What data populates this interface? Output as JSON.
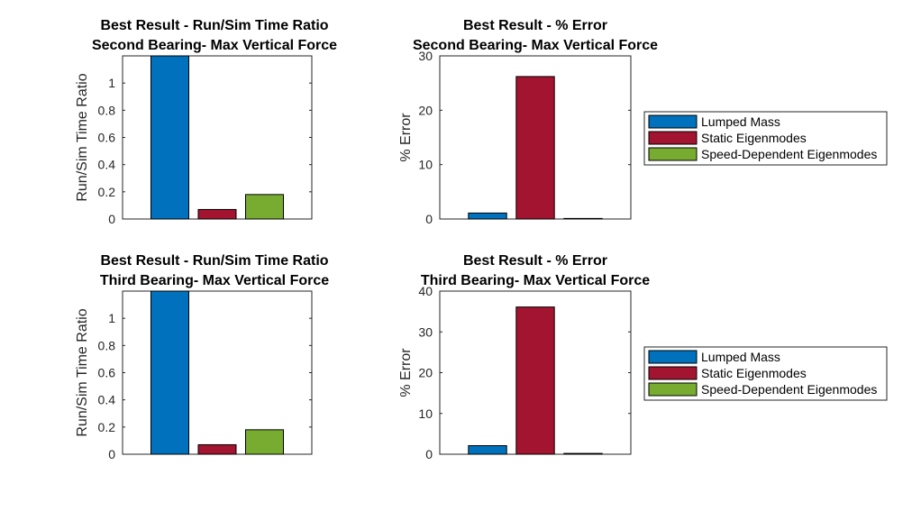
{
  "legend": {
    "entries": [
      "Lumped Mass",
      "Static Eigenmodes",
      "Speed-Dependent Eigenmodes"
    ],
    "colors": [
      "#0072BD",
      "#A2142F",
      "#77AC30"
    ]
  },
  "chart_data": [
    {
      "type": "bar",
      "title": [
        "Best Result - Run/Sim Time Ratio",
        "Second Bearing- Max Vertical Force"
      ],
      "ylabel": "Run/Sim Time Ratio",
      "xlabel": "",
      "categories": [
        "Lumped Mass",
        "Static Eigenmodes",
        "Speed-Dependent Eigenmodes"
      ],
      "values": [
        1.2,
        0.07,
        0.18
      ],
      "ylim": [
        0,
        1.2
      ],
      "yticks": [
        0,
        0.2,
        0.4,
        0.6,
        0.8,
        1
      ],
      "ytick_labels": [
        "0",
        "0.2",
        "0.4",
        "0.6",
        "0.8",
        "1"
      ],
      "legend": false
    },
    {
      "type": "bar",
      "title": [
        "Best Result - % Error",
        "Second Bearing- Max Vertical Force"
      ],
      "ylabel": "% Error",
      "xlabel": "",
      "categories": [
        "Lumped Mass",
        "Static Eigenmodes",
        "Speed-Dependent Eigenmodes"
      ],
      "values": [
        1.1,
        26.2,
        0.1
      ],
      "ylim": [
        0,
        30
      ],
      "yticks": [
        0,
        10,
        20,
        30
      ],
      "ytick_labels": [
        "0",
        "10",
        "20",
        "30"
      ],
      "legend": "right"
    },
    {
      "type": "bar",
      "title": [
        "Best Result - Run/Sim Time Ratio",
        "Third Bearing- Max Vertical Force"
      ],
      "ylabel": "Run/Sim Time Ratio",
      "xlabel": "",
      "categories": [
        "Lumped Mass",
        "Static Eigenmodes",
        "Speed-Dependent Eigenmodes"
      ],
      "values": [
        1.2,
        0.07,
        0.18
      ],
      "ylim": [
        0,
        1.2
      ],
      "yticks": [
        0,
        0.2,
        0.4,
        0.6,
        0.8,
        1
      ],
      "ytick_labels": [
        "0",
        "0.2",
        "0.4",
        "0.6",
        "0.8",
        "1"
      ],
      "legend": false
    },
    {
      "type": "bar",
      "title": [
        "Best Result - % Error",
        "Third Bearing- Max Vertical Force"
      ],
      "ylabel": "% Error",
      "xlabel": "",
      "categories": [
        "Lumped Mass",
        "Static Eigenmodes",
        "Speed-Dependent Eigenmodes"
      ],
      "values": [
        2.1,
        36.1,
        0.2
      ],
      "ylim": [
        0,
        40
      ],
      "yticks": [
        0,
        10,
        20,
        30,
        40
      ],
      "ytick_labels": [
        "0",
        "10",
        "20",
        "30",
        "40"
      ],
      "legend": "right"
    }
  ]
}
